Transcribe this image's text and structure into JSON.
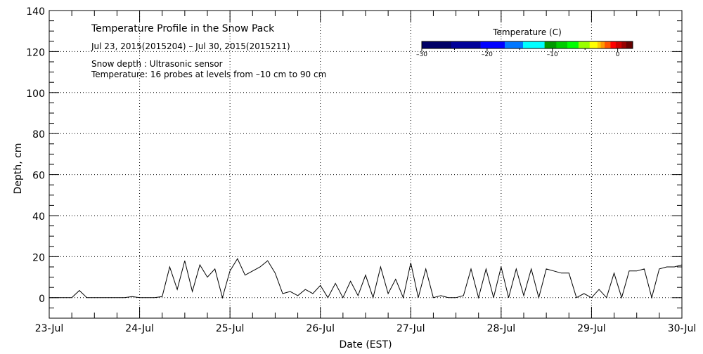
{
  "chart_data": {
    "type": "line",
    "title": "Temperature Profile in the Snow Pack",
    "subtitle": "Jul 23, 2015(2015204) – Jul 30, 2015(2015211)",
    "annotations": [
      "Snow depth : Ultrasonic sensor",
      "Temperature: 16 probes at levels from –10 cm to 90 cm"
    ],
    "xlabel": "Date (EST)",
    "ylabel": "Depth, cm",
    "xlim": [
      0,
      7
    ],
    "ylim": [
      -10,
      140
    ],
    "x_tick_labels": [
      "23-Jul",
      "24-Jul",
      "25-Jul",
      "26-Jul",
      "27-Jul",
      "28-Jul",
      "29-Jul",
      "30-Jul"
    ],
    "y_ticks": [
      0,
      20,
      40,
      60,
      80,
      100,
      120,
      140
    ],
    "grid": true,
    "x_step_days": 0.08333,
    "series": [
      {
        "name": "Snow depth",
        "color": "#000000",
        "values": [
          0,
          0,
          0,
          0,
          3.5,
          0,
          0,
          0,
          0,
          0,
          0,
          0.5,
          0,
          0,
          0,
          0.5,
          15,
          4,
          18,
          3,
          16,
          10,
          14,
          0,
          13,
          19,
          11,
          13,
          15,
          18,
          12,
          2,
          3,
          1,
          4,
          2,
          6,
          0,
          7,
          0,
          8,
          1,
          11,
          0,
          15,
          2,
          9,
          0,
          17,
          0,
          14,
          0,
          1,
          0,
          0,
          1,
          14,
          0,
          14,
          0,
          15,
          0,
          14,
          1,
          14,
          0,
          14,
          13,
          12,
          12,
          0,
          2,
          0,
          4,
          0,
          12,
          0,
          13,
          13,
          14,
          0,
          14,
          15,
          15,
          16
        ]
      }
    ],
    "colorbar": {
      "title": "Temperature (C)",
      "range": [
        -30,
        2.3
      ],
      "tick_labels": [
        "-30",
        "-20",
        "-10",
        "0"
      ],
      "ticks": [
        -30,
        -20,
        -10,
        0
      ],
      "segments": [
        {
          "from": -30,
          "to": -25.5,
          "color": "#000066"
        },
        {
          "from": -25.5,
          "to": -21,
          "color": "#000099"
        },
        {
          "from": -21,
          "to": -17.3,
          "color": "#0000ff"
        },
        {
          "from": -17.3,
          "to": -14.5,
          "color": "#0077ff"
        },
        {
          "from": -14.5,
          "to": -11.2,
          "color": "#00ffff"
        },
        {
          "from": -11.2,
          "to": -9.4,
          "color": "#009900"
        },
        {
          "from": -9.4,
          "to": -7.7,
          "color": "#00cc00"
        },
        {
          "from": -7.7,
          "to": -6,
          "color": "#00ff00"
        },
        {
          "from": -6,
          "to": -4.3,
          "color": "#99ff00"
        },
        {
          "from": -4.3,
          "to": -3.1,
          "color": "#ffff00"
        },
        {
          "from": -3.1,
          "to": -2.6,
          "color": "#ffcc00"
        },
        {
          "from": -2.6,
          "to": -2,
          "color": "#ff9900"
        },
        {
          "from": -2,
          "to": -1.1,
          "color": "#ff5500"
        },
        {
          "from": -1.1,
          "to": -0.3,
          "color": "#ff0000"
        },
        {
          "from": -0.3,
          "to": 0.6,
          "color": "#cc0000"
        },
        {
          "from": 0.6,
          "to": 1.3,
          "color": "#990000"
        },
        {
          "from": 1.3,
          "to": 2.3,
          "color": "#660000"
        }
      ]
    }
  }
}
